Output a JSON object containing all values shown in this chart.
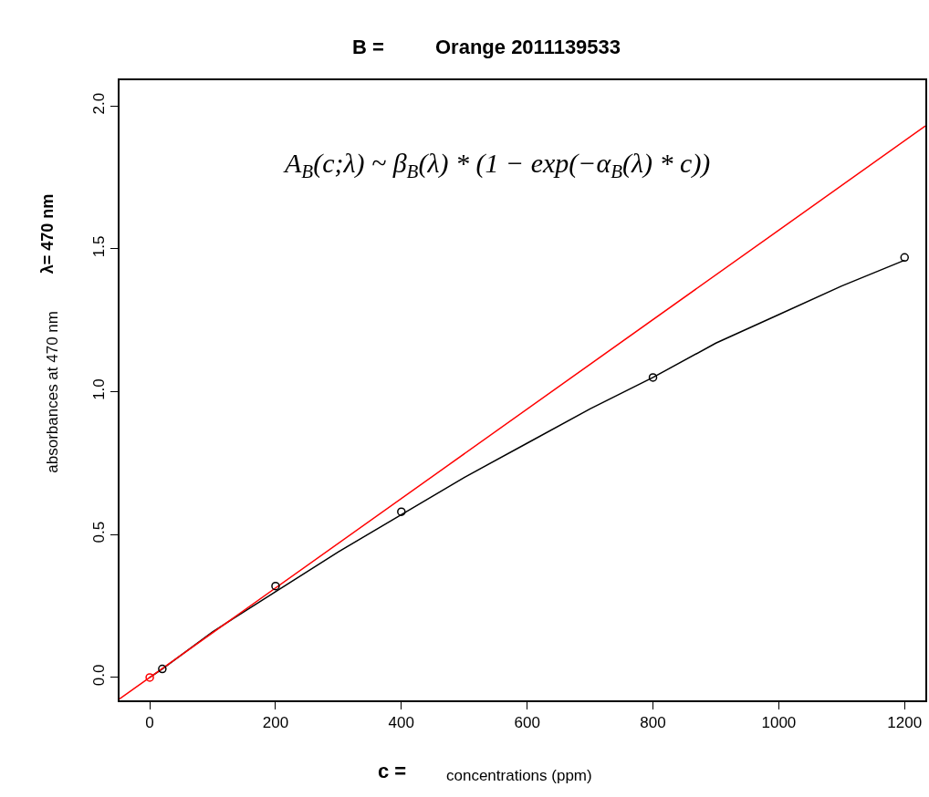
{
  "chart_data": {
    "type": "scatter",
    "xlabel": "concentrations (ppm)",
    "ylabel": "absorbances at 470 nm",
    "annotations": [
      "A$_{B}$(c;λ) ~ β$_{B}$(λ) * (1 − exp(−α$_{B}$(λ) * c))",
      "B =",
      "Orange 2011139533",
      "λ= 470 nm",
      "c ="
    ],
    "xlim": [
      -48,
      1233
    ],
    "ylim": [
      -0.08,
      2.09
    ],
    "xticks": [
      0,
      200,
      400,
      600,
      800,
      1000,
      1200
    ],
    "yticks": [
      {
        "value": 0,
        "label": "0.0"
      },
      {
        "value": 0.5,
        "label": "0.5"
      },
      {
        "value": 1,
        "label": "1.0"
      },
      {
        "value": 1.5,
        "label": "1.5"
      },
      {
        "value": 2,
        "label": "2.0"
      }
    ],
    "series": [
      {
        "type": "line",
        "color": "#000000",
        "marker": "none",
        "x": [
          0,
          20,
          100,
          200,
          300,
          400,
          500,
          600,
          700,
          800,
          900,
          1000,
          1100,
          1200
        ],
        "values": [
          0,
          0.03,
          0.16,
          0.3,
          0.44,
          0.57,
          0.7,
          0.82,
          0.94,
          1.05,
          1.17,
          1.27,
          1.37,
          1.46
        ]
      },
      {
        "type": "line",
        "color": "#ff0000",
        "marker": "none",
        "x": [
          -48,
          1233
        ],
        "values": [
          -0.075,
          1.93
        ]
      },
      {
        "type": "scatter",
        "color": "#000000",
        "marker": "circle",
        "x": [
          20,
          200,
          400,
          800,
          1200
        ],
        "values": [
          0.03,
          0.32,
          0.58,
          1.05,
          1.47
        ]
      },
      {
        "type": "scatter",
        "color": "#ff0000",
        "marker": "circle",
        "x": [
          0
        ],
        "values": [
          0
        ]
      }
    ]
  }
}
